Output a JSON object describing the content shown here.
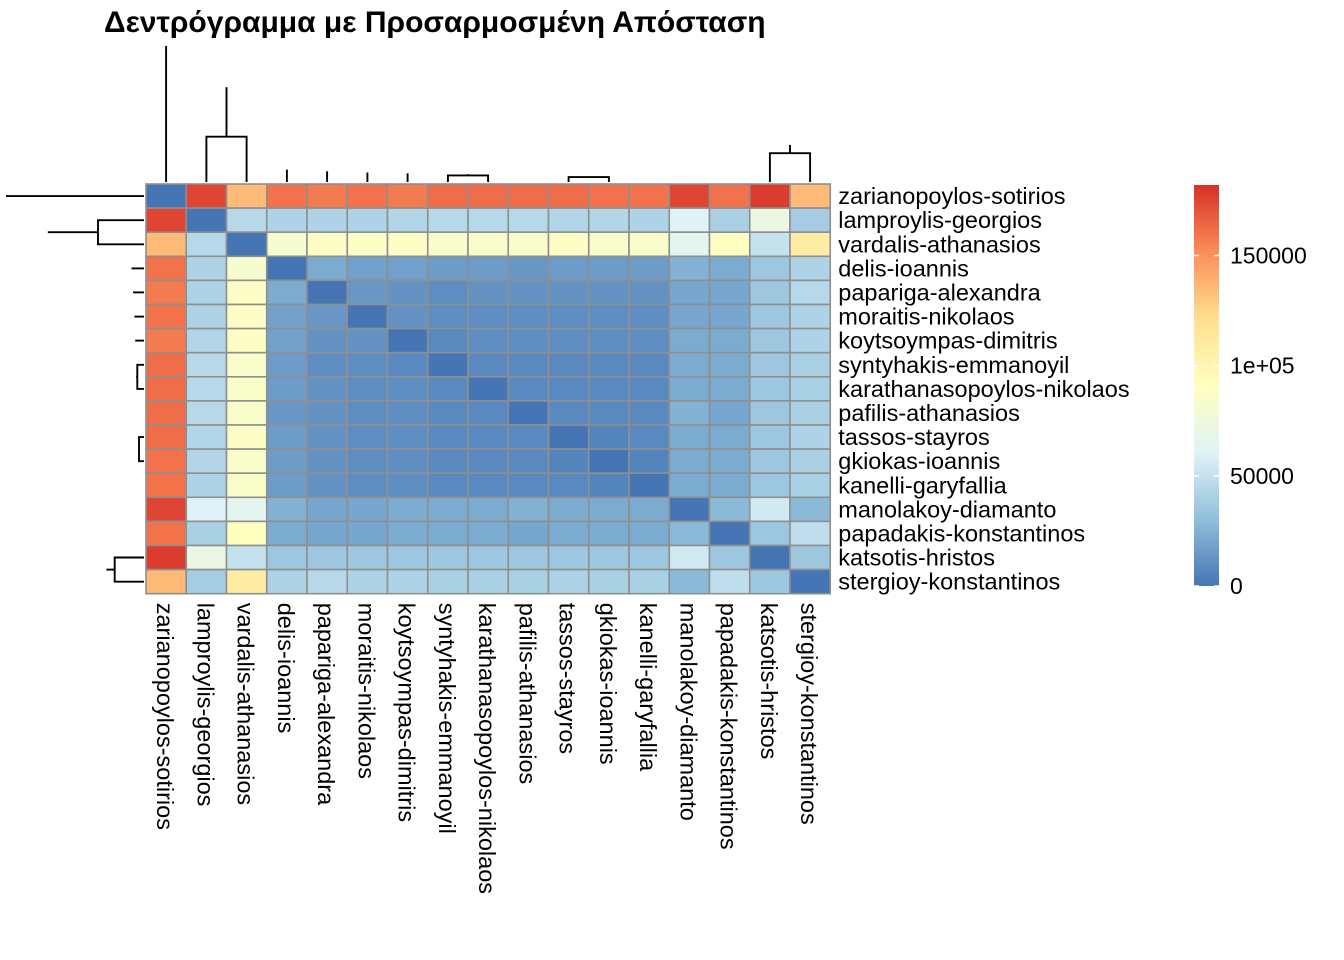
{
  "chart_data": {
    "type": "heatmap",
    "title": "Δεντρόγραμμα με Προσαρμοσμένη Απόσταση",
    "labels": [
      "zarianopoylos-sotirios",
      "lamproylis-georgios",
      "vardalis-athanasios",
      "delis-ioannis",
      "papariga-alexandra",
      "moraitis-nikolaos",
      "koytsoympas-dimitris",
      "syntyhakis-emmanoyil",
      "karathanasopoylos-nikolaos",
      "pafilis-athanasios",
      "tassos-stayros",
      "gkiokas-ioannis",
      "kanelli-garyfallia",
      "manolakoy-diamanto",
      "papadakis-konstantinos",
      "katsotis-hristos",
      "stergioy-konstantinos"
    ],
    "values": [
      [
        0,
        175000,
        135000,
        160000,
        158000,
        160000,
        158000,
        162000,
        162000,
        162000,
        162000,
        160000,
        160000,
        175000,
        160000,
        178000,
        135000
      ],
      [
        175000,
        0,
        45000,
        42000,
        42000,
        42000,
        43000,
        45000,
        45000,
        45000,
        43000,
        43000,
        42000,
        60000,
        40000,
        72000,
        38000
      ],
      [
        135000,
        45000,
        0,
        82000,
        88000,
        88000,
        88000,
        85000,
        85000,
        85000,
        88000,
        85000,
        85000,
        65000,
        90000,
        50000,
        110000
      ],
      [
        160000,
        42000,
        82000,
        0,
        22000,
        18000,
        18000,
        16000,
        16000,
        14000,
        16000,
        16000,
        16000,
        25000,
        22000,
        35000,
        42000
      ],
      [
        158000,
        42000,
        88000,
        22000,
        0,
        14000,
        12000,
        10000,
        12000,
        12000,
        12000,
        12000,
        12000,
        20000,
        20000,
        35000,
        45000
      ],
      [
        160000,
        42000,
        88000,
        18000,
        14000,
        0,
        12000,
        10000,
        10000,
        10000,
        10000,
        10000,
        10000,
        20000,
        20000,
        35000,
        42000
      ],
      [
        158000,
        43000,
        88000,
        18000,
        12000,
        12000,
        0,
        8000,
        10000,
        10000,
        10000,
        10000,
        10000,
        22000,
        22000,
        35000,
        42000
      ],
      [
        162000,
        45000,
        85000,
        16000,
        10000,
        10000,
        8000,
        0,
        8000,
        8000,
        8000,
        8000,
        8000,
        22000,
        22000,
        35000,
        40000
      ],
      [
        162000,
        45000,
        85000,
        16000,
        12000,
        10000,
        10000,
        8000,
        0,
        8000,
        8000,
        8000,
        8000,
        22000,
        22000,
        35000,
        40000
      ],
      [
        162000,
        45000,
        85000,
        14000,
        12000,
        10000,
        10000,
        8000,
        8000,
        0,
        8000,
        8000,
        8000,
        25000,
        20000,
        35000,
        40000
      ],
      [
        162000,
        43000,
        88000,
        16000,
        12000,
        10000,
        10000,
        8000,
        8000,
        8000,
        0,
        6000,
        8000,
        22000,
        22000,
        35000,
        42000
      ],
      [
        160000,
        43000,
        85000,
        16000,
        12000,
        10000,
        10000,
        8000,
        8000,
        8000,
        6000,
        0,
        6000,
        22000,
        22000,
        35000,
        40000
      ],
      [
        160000,
        42000,
        85000,
        16000,
        12000,
        10000,
        10000,
        8000,
        8000,
        8000,
        8000,
        6000,
        0,
        22000,
        22000,
        35000,
        40000
      ],
      [
        175000,
        60000,
        65000,
        25000,
        20000,
        20000,
        22000,
        22000,
        22000,
        25000,
        22000,
        22000,
        22000,
        0,
        28000,
        55000,
        28000
      ],
      [
        160000,
        40000,
        90000,
        22000,
        20000,
        20000,
        22000,
        22000,
        22000,
        20000,
        22000,
        22000,
        22000,
        28000,
        0,
        35000,
        48000
      ],
      [
        178000,
        72000,
        50000,
        35000,
        35000,
        35000,
        35000,
        35000,
        35000,
        35000,
        35000,
        35000,
        35000,
        55000,
        35000,
        0,
        35000
      ],
      [
        135000,
        38000,
        110000,
        42000,
        45000,
        42000,
        42000,
        40000,
        40000,
        40000,
        42000,
        40000,
        40000,
        28000,
        48000,
        35000,
        0
      ]
    ],
    "colorbar": {
      "min": 0,
      "max": 182000,
      "ticks": [
        0,
        50000,
        100000,
        150000
      ],
      "tick_labels": [
        "0",
        "50000",
        "1e+05",
        "150000"
      ],
      "colors": [
        "#4575b4",
        "#91bfdb",
        "#e0f3f8",
        "#ffffbf",
        "#fee090",
        "#fc8d59",
        "#d73027"
      ]
    },
    "dendrogram": {
      "order": [
        0,
        1,
        2,
        3,
        4,
        5,
        6,
        7,
        8,
        9,
        10,
        11,
        12,
        13,
        14,
        15,
        16
      ],
      "merges": [
        [
          10,
          11,
          6000
        ],
        [
          18,
          12,
          7000
        ],
        [
          7,
          8,
          8000
        ],
        [
          20,
          9,
          8500
        ],
        [
          19,
          21,
          9500
        ],
        [
          6,
          22,
          10500
        ],
        [
          5,
          23,
          11500
        ],
        [
          4,
          24,
          13000
        ],
        [
          3,
          25,
          15000
        ],
        [
          26,
          13,
          17000
        ],
        [
          27,
          14,
          19000
        ],
        [
          15,
          16,
          35000
        ],
        [
          28,
          29,
          45000
        ],
        [
          1,
          2,
          55000
        ],
        [
          30,
          31,
          115000
        ],
        [
          0,
          32,
          165000
        ]
      ]
    }
  }
}
